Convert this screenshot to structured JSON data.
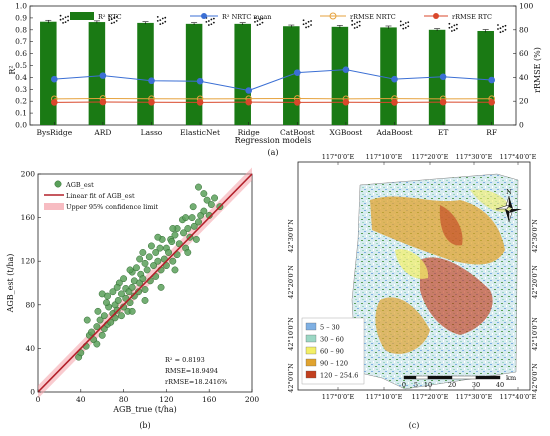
{
  "panel_labels": {
    "a": "(a)",
    "b": "(b)",
    "c": "(c)"
  },
  "chart_data": [
    {
      "type": "bar",
      "title": "",
      "xlabel": "Regression models",
      "ylabel": "R²",
      "ylabel_right": "rRMSE (%)",
      "ylim": [
        0,
        1.0
      ],
      "ylim_right": [
        0,
        100
      ],
      "yticks": [
        "0.0",
        "0.1",
        "0.2",
        "0.3",
        "0.4",
        "0.5",
        "0.6",
        "0.7",
        "0.8",
        "0.9",
        "1.0"
      ],
      "yticks_right": [
        "0",
        "20",
        "40",
        "60",
        "80",
        "100"
      ],
      "categories": [
        "BysRidge",
        "ARD",
        "Lasso",
        "ElasticNet",
        "Ridge",
        "CatBoost",
        "XGBoost",
        "AdaBoost",
        "ET",
        "RF"
      ],
      "legend": [
        "R² RTC",
        "R² NRTC mean",
        "rRMSE NRTC",
        "rRMSE RTC"
      ],
      "series": [
        {
          "name": "R² RTC",
          "kind": "bar",
          "axis": "left",
          "color": "#1a7a14",
          "values": [
            0.868,
            0.865,
            0.858,
            0.85,
            0.85,
            0.83,
            0.825,
            0.82,
            0.8,
            0.79
          ],
          "errors": [
            0.012,
            0.01,
            0.01,
            0.01,
            0.01,
            0.01,
            0.012,
            0.012,
            0.01,
            0.012
          ]
        },
        {
          "name": "R² NRTC mean",
          "kind": "line",
          "axis": "left",
          "color": "#3b6fd4",
          "values": [
            0.385,
            0.415,
            0.372,
            0.368,
            0.29,
            0.44,
            0.465,
            0.385,
            0.405,
            0.378
          ]
        },
        {
          "name": "rRMSE NRTC",
          "kind": "line",
          "axis": "right",
          "color": "#e6a23c",
          "values": [
            22.0,
            22.3,
            22.1,
            22.0,
            22.1,
            22.3,
            22.0,
            22.2,
            22.0,
            22.1
          ]
        },
        {
          "name": "rRMSE RTC",
          "kind": "line",
          "axis": "right",
          "color": "#d9472b",
          "values": [
            19.0,
            19.3,
            19.1,
            19.0,
            19.2,
            19.0,
            19.1,
            19.0,
            19.2,
            19.1
          ]
        }
      ]
    },
    {
      "type": "scatter",
      "title": "",
      "xlabel": "AGB_true (t/ha)",
      "ylabel": "AGB_est (t/ha)",
      "xlim": [
        0,
        200
      ],
      "ylim": [
        0,
        200
      ],
      "xticks": [
        "0",
        "40",
        "80",
        "120",
        "160",
        "200"
      ],
      "yticks": [
        "0",
        "40",
        "80",
        "120",
        "160",
        "200"
      ],
      "legend": [
        "AGB_est",
        "Linear fit of AGB_est",
        "Upper 95% confidence limit"
      ],
      "stats": [
        "R² = 0.8193",
        "RMSE=18.9494",
        "rRMSE=18.2416%"
      ],
      "fit_line": {
        "x": [
          0,
          200
        ],
        "y": [
          0,
          200
        ]
      },
      "points": [
        [
          38,
          32
        ],
        [
          40,
          36
        ],
        [
          45,
          42
        ],
        [
          48,
          52
        ],
        [
          50,
          55
        ],
        [
          52,
          48
        ],
        [
          55,
          60
        ],
        [
          55,
          44
        ],
        [
          58,
          66
        ],
        [
          60,
          52
        ],
        [
          60,
          90
        ],
        [
          62,
          70
        ],
        [
          62,
          58
        ],
        [
          65,
          62
        ],
        [
          65,
          88
        ],
        [
          66,
          78
        ],
        [
          68,
          64
        ],
        [
          70,
          72
        ],
        [
          70,
          92
        ],
        [
          72,
          68
        ],
        [
          72,
          80
        ],
        [
          74,
          75
        ],
        [
          75,
          84
        ],
        [
          76,
          100
        ],
        [
          78,
          70
        ],
        [
          78,
          90
        ],
        [
          80,
          78
        ],
        [
          80,
          104
        ],
        [
          82,
          86
        ],
        [
          82,
          95
        ],
        [
          84,
          74
        ],
        [
          85,
          92
        ],
        [
          86,
          82
        ],
        [
          88,
          110
        ],
        [
          88,
          96
        ],
        [
          90,
          88
        ],
        [
          90,
          102
        ],
        [
          92,
          114
        ],
        [
          94,
          92
        ],
        [
          95,
          100
        ],
        [
          95,
          122
        ],
        [
          96,
          108
        ],
        [
          98,
          104
        ],
        [
          100,
          94
        ],
        [
          100,
          118
        ],
        [
          102,
          112
        ],
        [
          104,
          124
        ],
        [
          105,
          102
        ],
        [
          106,
          134
        ],
        [
          108,
          116
        ],
        [
          110,
          106
        ],
        [
          110,
          128
        ],
        [
          112,
          120
        ],
        [
          114,
          132
        ],
        [
          115,
          112
        ],
        [
          116,
          140
        ],
        [
          118,
          122
        ],
        [
          120,
          116
        ],
        [
          120,
          132
        ],
        [
          122,
          128
        ],
        [
          124,
          140
        ],
        [
          125,
          138
        ],
        [
          126,
          120
        ],
        [
          128,
          144
        ],
        [
          130,
          126
        ],
        [
          130,
          150
        ],
        [
          132,
          136
        ],
        [
          135,
          158
        ],
        [
          136,
          146
        ],
        [
          138,
          132
        ],
        [
          140,
          150
        ],
        [
          142,
          142
        ],
        [
          144,
          160
        ],
        [
          145,
          170
        ],
        [
          146,
          152
        ],
        [
          150,
          156
        ],
        [
          152,
          162
        ],
        [
          155,
          166
        ],
        [
          155,
          182
        ],
        [
          158,
          176
        ],
        [
          160,
          162
        ],
        [
          162,
          172
        ],
        [
          165,
          178
        ],
        [
          170,
          170
        ],
        [
          150,
          188
        ],
        [
          138,
          160
        ],
        [
          126,
          150
        ],
        [
          112,
          142
        ],
        [
          98,
          128
        ],
        [
          86,
          112
        ],
        [
          74,
          96
        ],
        [
          64,
          82
        ],
        [
          56,
          74
        ],
        [
          46,
          66
        ],
        [
          115,
          96
        ],
        [
          128,
          112
        ],
        [
          140,
          128
        ],
        [
          100,
          84
        ],
        [
          88,
          74
        ],
        [
          148,
          140
        ]
      ]
    },
    {
      "type": "heatmap",
      "title": "",
      "top_lon_labels": [
        "117°0′0″E",
        "117°10′0″E",
        "117°20′0″E",
        "117°30′0″E",
        "117°40′0″E"
      ],
      "bottom_lon_labels": [
        "117°0′0″E",
        "117°10′0″E",
        "117°20′0″E",
        "117°30′0″E",
        "117°40′0″E"
      ],
      "left_lat_labels": [
        "42°30′0″N",
        "42°20′0″N",
        "42°10′0″N",
        "42°0′0″N"
      ],
      "right_lat_labels": [
        "42°30′0″N",
        "42°20′0″N",
        "42°10′0″N",
        "42°0′0″N"
      ],
      "north": "N",
      "scalebar": {
        "ticks": [
          "0",
          "5",
          "10",
          "20",
          "30",
          "40"
        ],
        "unit": "km"
      },
      "legend": [
        {
          "label": "5 – 30",
          "color": "#7fb0e3"
        },
        {
          "label": "30 – 60",
          "color": "#9bd7c4"
        },
        {
          "label": "60 – 90",
          "color": "#f3ef66"
        },
        {
          "label": "90 – 120",
          "color": "#e0a32f"
        },
        {
          "label": "120 – 254.6",
          "color": "#c2401f"
        }
      ]
    }
  ]
}
